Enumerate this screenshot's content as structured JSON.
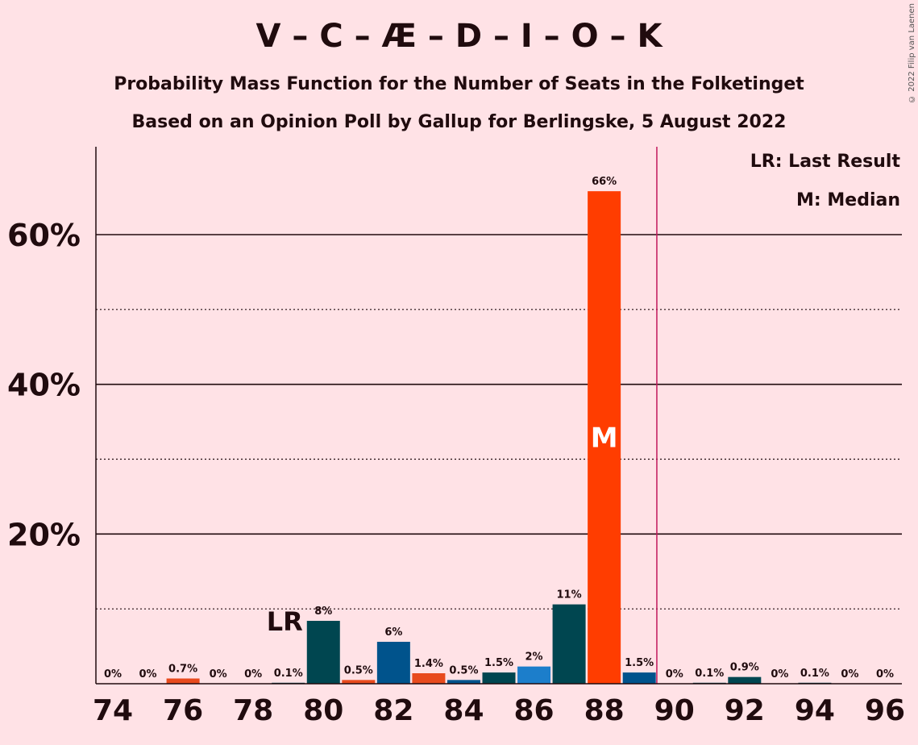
{
  "header": {
    "title": "V – C – Æ – D – I – O – K",
    "subtitle_1": "Probability Mass Function for the Number of Seats in the Folketinget",
    "subtitle_2": "Based on an Opinion Poll by Gallup for Berlingske, 5 August 2022",
    "copyright": "© 2022 Filip van Laenen"
  },
  "legend": {
    "last_result": "LR: Last Result",
    "median": "M: Median"
  },
  "chart_data": {
    "type": "bar",
    "x": [
      74,
      75,
      76,
      77,
      78,
      79,
      80,
      81,
      82,
      83,
      84,
      85,
      86,
      87,
      88,
      89,
      90,
      91,
      92,
      93,
      94,
      95,
      96
    ],
    "values": [
      0,
      0,
      0.7,
      0,
      0,
      0.1,
      8.4,
      0.5,
      5.6,
      1.4,
      0.5,
      1.5,
      2.3,
      10.6,
      65.8,
      1.5,
      0,
      0.1,
      0.9,
      0,
      0.1,
      0,
      0
    ],
    "value_labels": [
      "0%",
      "0%",
      "0.7%",
      "0%",
      "0%",
      "0.1%",
      "8%",
      "0.5%",
      "6%",
      "1.4%",
      "0.5%",
      "1.5%",
      "2%",
      "11%",
      "66%",
      "1.5%",
      "0%",
      "0.1%",
      "0.9%",
      "0%",
      "0.1%",
      "0%",
      "0%"
    ],
    "bar_colors": [
      "#004650",
      "#004650",
      "#E84A1D",
      "#004650",
      "#004650",
      "#004650",
      "#004650",
      "#E84A1D",
      "#00538C",
      "#E84A1D",
      "#00538C",
      "#004650",
      "#1C7ECB",
      "#004650",
      "#FF3D00",
      "#00538C",
      "#004650",
      "#004650",
      "#004650",
      "#004650",
      "#004650",
      "#004650",
      "#004650"
    ],
    "x_tick_labels": [
      "74",
      "76",
      "78",
      "80",
      "82",
      "84",
      "86",
      "88",
      "90",
      "92",
      "94",
      "96"
    ],
    "y_tick_labels": [
      "20%",
      "40%",
      "60%"
    ],
    "y_ticks": [
      20,
      40,
      60
    ],
    "ylim": [
      0,
      72
    ],
    "last_result_seat": 79,
    "last_result_label": "LR",
    "median_seat": 88,
    "median_label": "M",
    "majority_seat": 90,
    "majority_line_color": "#C2185B",
    "grid": "solid every 20%, dotted every 10%"
  }
}
